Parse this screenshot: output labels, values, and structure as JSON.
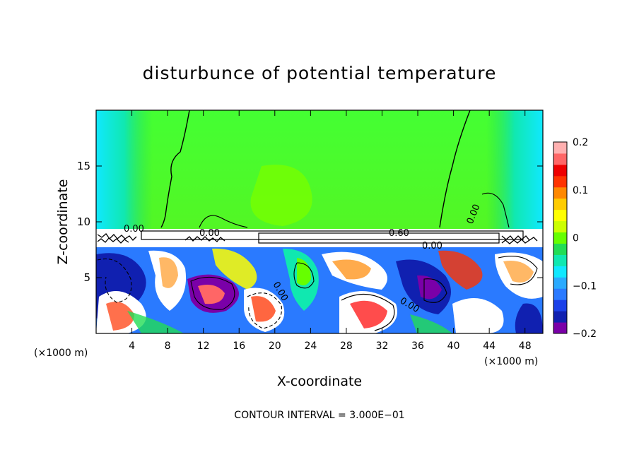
{
  "chart_data": {
    "type": "heatmap",
    "title": "disturbunce of potential temperature",
    "xlabel": "X-coordinate",
    "ylabel": "Z-coordinate",
    "x_unit_left": "(×1000 m)",
    "x_unit_right": "(×1000 m)",
    "xlim": [
      0,
      50
    ],
    "ylim": [
      0,
      20
    ],
    "x_ticks": [
      4,
      8,
      12,
      16,
      20,
      24,
      28,
      32,
      36,
      40,
      44,
      48
    ],
    "y_ticks": [
      5,
      10,
      15
    ],
    "colorbar": {
      "range": [
        -0.2,
        0.2
      ],
      "ticks": [
        0.2,
        0.1,
        0,
        -0.1,
        -0.2
      ],
      "tick_labels": [
        "0.2",
        "0.1",
        "0",
        "−0.1",
        "−0.2"
      ],
      "colors": [
        "#7a00a8",
        "#1020b0",
        "#1a40e8",
        "#2a7aff",
        "#2aaaff",
        "#10e8ff",
        "#10e8b0",
        "#22dd55",
        "#66ff00",
        "#ccff00",
        "#ffff00",
        "#ffcc00",
        "#ff8800",
        "#ff3300",
        "#ee0000",
        "#ff6666",
        "#ffb0b0"
      ]
    },
    "contour_labels": [
      "0.00",
      "0.00",
      "0.60",
      "0.00",
      "0.00",
      "0.00",
      "0.00"
    ],
    "contour_interval_text": "CONTOUR INTERVAL = 3.000E−01"
  }
}
